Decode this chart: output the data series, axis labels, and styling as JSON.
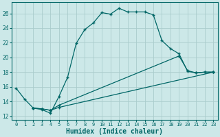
{
  "xlabel": "Humidex (Indice chaleur)",
  "bg_color": "#cce8e8",
  "grid_color": "#aacccc",
  "line_color": "#006666",
  "xlim": [
    -0.5,
    23.5
  ],
  "ylim": [
    11.5,
    27.5
  ],
  "yticks": [
    12,
    14,
    16,
    18,
    20,
    22,
    24,
    26
  ],
  "xticks": [
    0,
    1,
    2,
    3,
    4,
    5,
    6,
    7,
    8,
    9,
    10,
    11,
    12,
    13,
    14,
    15,
    16,
    17,
    18,
    19,
    20,
    21,
    22,
    23
  ],
  "curve1_x": [
    0,
    1,
    2,
    3,
    4,
    5,
    6,
    7,
    8,
    9,
    10,
    11,
    12,
    13,
    14,
    15,
    16,
    17,
    18,
    19,
    20,
    21,
    22,
    23
  ],
  "curve1_y": [
    15.8,
    14.3,
    13.1,
    12.9,
    12.4,
    14.7,
    17.3,
    21.9,
    23.8,
    24.7,
    26.1,
    25.9,
    26.7,
    26.2,
    26.2,
    26.2,
    25.8,
    22.3,
    21.2,
    20.5,
    18.1,
    17.9,
    18.0,
    18.0
  ],
  "curve2_x": [
    2,
    3,
    4,
    5,
    23
  ],
  "curve2_y": [
    13.1,
    13.0,
    12.8,
    13.2,
    18.0
  ],
  "curve3_x": [
    2,
    3,
    4,
    5,
    19,
    20,
    21,
    22,
    23
  ],
  "curve3_y": [
    13.1,
    13.0,
    12.8,
    13.5,
    20.2,
    18.2,
    17.9,
    18.0,
    18.0
  ]
}
